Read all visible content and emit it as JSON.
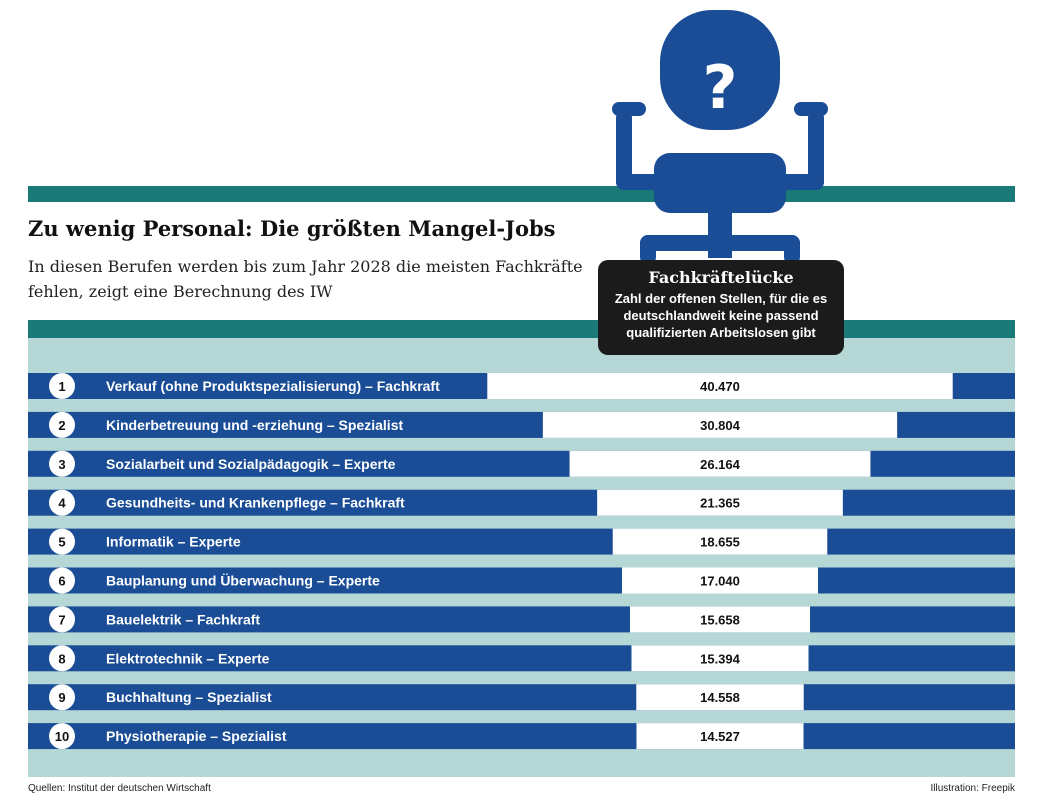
{
  "header": {
    "title": "Zu wenig Personal: Die größten Mangel-Jobs",
    "subtitle": "In diesen Berufen werden bis zum Jahr 2028 die meisten Fachkräfte fehlen, zeigt eine Berechnung des IW"
  },
  "badge": {
    "title": "Fachkräftelücke",
    "text": "Zahl der offenen Stellen, für die es deutschlandweit keine passend qualifizierten Arbeitslosen gibt"
  },
  "chart_data": {
    "type": "bar",
    "title": "Zu wenig Personal: Die größten Mangel-Jobs",
    "subtitle": "In diesen Berufen werden bis zum Jahr 2028 die meisten Fachkräfte fehlen, zeigt eine Berechnung des IW",
    "categories": [
      "Verkauf (ohne Produktspezialisierung) – Fachkraft",
      "Kinderbetreuung und -erziehung – Spezialist",
      "Sozialarbeit und Sozialpädagogik – Experte",
      "Gesundheits- und Krankenpflege – Fachkraft",
      "Informatik – Experte",
      "Bauplanung und Überwachung – Experte",
      "Bauelektrik – Fachkraft",
      "Elektrotechnik – Experte",
      "Buchhaltung – Spezialist",
      "Physiotherapie – Spezialist"
    ],
    "ranks": [
      "1",
      "2",
      "3",
      "4",
      "5",
      "6",
      "7",
      "8",
      "9",
      "10"
    ],
    "values": [
      40470,
      30804,
      26164,
      21365,
      18655,
      17040,
      15658,
      15394,
      14558,
      14527
    ],
    "value_labels": [
      "40.470",
      "30.804",
      "26.164",
      "21.365",
      "18.655",
      "17.040",
      "15.658",
      "15.394",
      "14.558",
      "14.527"
    ],
    "colors": {
      "bar": "#1a4d96",
      "value_bar": "#ffffff",
      "background": "#b5d8d6",
      "accent": "#1a7a78"
    }
  },
  "footer": {
    "source": "Quellen: Institut der deutschen Wirtschaft",
    "credit": "Illustration: Freepik"
  },
  "illustration": {
    "icon": "office-chair-question-icon",
    "glyph": "?",
    "color": "#1a4d96"
  }
}
